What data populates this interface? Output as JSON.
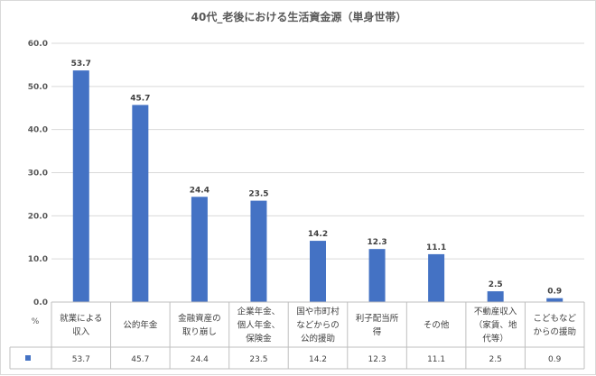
{
  "chart_data": {
    "type": "bar",
    "title": "40代_老後における生活資金源（単身世帯）",
    "ylabel": "%",
    "ylim": [
      0,
      60
    ],
    "yticks": [
      "0.0",
      "10.0",
      "20.0",
      "30.0",
      "40.0",
      "50.0",
      "60.0"
    ],
    "grid": true,
    "legend": "data-table-below",
    "bar_color": "#4472c4",
    "categories": [
      [
        "就業による",
        "収入"
      ],
      [
        "公的年金"
      ],
      [
        "金融資産の",
        "取り崩し"
      ],
      [
        "企業年金、",
        "個人年金、",
        "保険金"
      ],
      [
        "国や市町村",
        "などからの",
        "公的援助"
      ],
      [
        "利子配当所",
        "得"
      ],
      [
        "その他"
      ],
      [
        "不動産収入",
        "（家賃、地",
        "代等）"
      ],
      [
        "こどもなど",
        "からの援助"
      ]
    ],
    "values": [
      53.7,
      45.7,
      24.4,
      23.5,
      14.2,
      12.3,
      11.1,
      2.5,
      0.9
    ],
    "value_labels": [
      "53.7",
      "45.7",
      "24.4",
      "23.5",
      "14.2",
      "12.3",
      "11.1",
      "2.5",
      "0.9"
    ]
  }
}
